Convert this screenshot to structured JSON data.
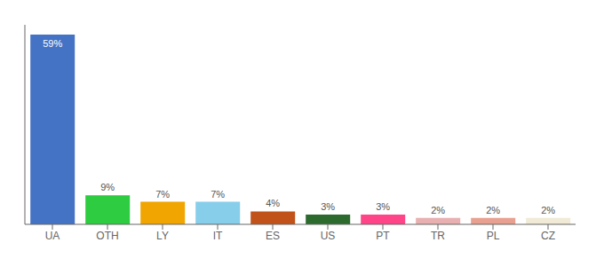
{
  "chart_data": {
    "type": "bar",
    "categories": [
      "UA",
      "OTH",
      "LY",
      "IT",
      "ES",
      "US",
      "PT",
      "TR",
      "PL",
      "CZ"
    ],
    "values": [
      59,
      9,
      7,
      7,
      4,
      3,
      3,
      2,
      2,
      2
    ],
    "value_labels": [
      "59%",
      "9%",
      "7%",
      "7%",
      "4%",
      "3%",
      "3%",
      "2%",
      "2%",
      "2%"
    ],
    "colors": [
      "#4472c4",
      "#2ecc40",
      "#f0a500",
      "#87ceeb",
      "#c0521a",
      "#2d6a2d",
      "#ff4488",
      "#e8b0b0",
      "#e8a090",
      "#f0ead6"
    ],
    "ylim": [
      0,
      62
    ],
    "data_labels": true,
    "tick_labels": "x",
    "grid": false
  }
}
